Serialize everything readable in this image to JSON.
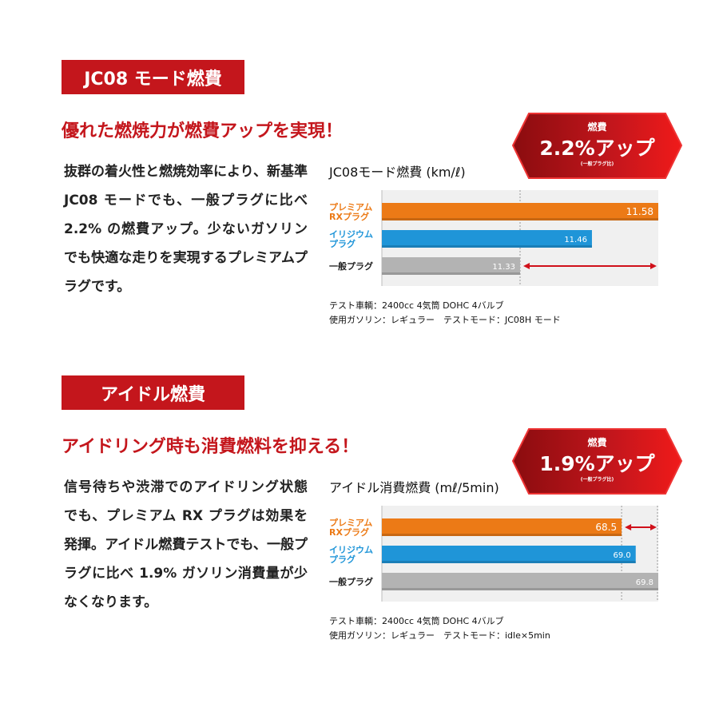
{
  "sections": [
    {
      "heading": "JC08 モード燃費",
      "title": "優れた燃焼力が燃費アップを実現！",
      "body": "抜群の着火性と燃焼効率により、新基準 JC08 モードでも、一般プラグに比べ 2.2% の燃費アップ。少ないガソリンでも快適な走りを実現するプレミアムプラグです。",
      "badge": {
        "label": "燃費",
        "value": "2.2%アップ",
        "note": "(一般プラグ比)"
      },
      "footnotes": [
        "テスト車輌：2400cc 4気筒 DOHC 4バルブ",
        "使用ガソリン：レギュラー　テストモード：JC08H モード"
      ]
    },
    {
      "heading": "アイドル燃費",
      "title": "アイドリング時も消費燃料を抑える！",
      "body": "信号待ちや渋滞でのアイドリング状態でも、プレミアム RX プラグは効果を発揮。アイドル燃費テストでも、一般プラグに比べ 1.9% ガソリン消費量が少なくなります。",
      "badge": {
        "label": "燃費",
        "value": "1.9%アップ",
        "note": "(一般プラグ比)"
      },
      "footnotes": [
        "テスト車輌：2400cc 4気筒 DOHC 4バルブ",
        "使用ガソリン：レギュラー　テストモード：idle×5min"
      ]
    }
  ],
  "colors": {
    "accent": "#c4161c",
    "orange": "#ec7a16",
    "blue": "#1f95d8",
    "gray": "#b3b3b3"
  },
  "chart_data": [
    {
      "type": "bar",
      "orientation": "horizontal",
      "title": "JC08モード燃費 (km/ℓ)",
      "categories": [
        "プレミアム\nRXプラグ",
        "イリジウム\nプラグ",
        "一般プラグ"
      ],
      "values": [
        11.58,
        11.46,
        11.33
      ],
      "labels": [
        "11.58",
        "11.46",
        "11.33"
      ],
      "xlim": [
        11.08,
        11.58
      ],
      "reference": 11.33,
      "arrow": [
        11.33,
        11.58
      ]
    },
    {
      "type": "bar",
      "orientation": "horizontal",
      "title": "アイドル消費燃費 (mℓ/5min)",
      "categories": [
        "プレミアム\nRXプラグ",
        "イリジウム\nプラグ",
        "一般プラグ"
      ],
      "values": [
        68.5,
        69.0,
        69.8
      ],
      "labels": [
        "68.5",
        "69.0",
        "69.8"
      ],
      "xlim": [
        60,
        69.8
      ],
      "reference": 68.5,
      "arrow": [
        68.5,
        69.8
      ]
    }
  ]
}
